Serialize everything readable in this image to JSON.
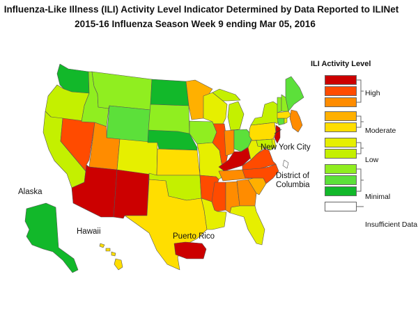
{
  "title": {
    "line1": "Influenza-Like Illness (ILI) Activity Level Indicator Determined by Data Reported to ILINet",
    "line2": "2015-16  Influenza Season Week  9 ending Mar 05, 2016"
  },
  "legend": {
    "title": "ILI Activity Level",
    "levels": [
      {
        "level": 10,
        "color": "#cc0000"
      },
      {
        "level": 9,
        "color": "#ff4b00"
      },
      {
        "level": 8,
        "color": "#ff8c00"
      },
      {
        "level": 7,
        "color": "#ffb000"
      },
      {
        "level": 6,
        "color": "#ffde00"
      },
      {
        "level": 5,
        "color": "#e6ef00"
      },
      {
        "level": 4,
        "color": "#c4f000"
      },
      {
        "level": 3,
        "color": "#90ee20"
      },
      {
        "level": 2,
        "color": "#5ce03a"
      },
      {
        "level": 1,
        "color": "#12b82a"
      },
      {
        "level": 0,
        "color": "#ffffff"
      }
    ],
    "groups": {
      "high": "High",
      "moderate": "Moderate",
      "low": "Low",
      "minimal": "Minimal",
      "insufficient": "Insufficient Data"
    }
  },
  "labels": {
    "alaska": "Alaska",
    "hawaii": "Hawaii",
    "puerto_rico": "Puerto Rico",
    "nyc": "New York City",
    "dc_line1": "District of",
    "dc_line2": "Columbia"
  },
  "states": {
    "WA": {
      "level": 1
    },
    "OR": {
      "level": 4
    },
    "CA": {
      "level": 4
    },
    "NV": {
      "level": 9
    },
    "ID": {
      "level": 3
    },
    "MT": {
      "level": 3
    },
    "WY": {
      "level": 2
    },
    "UT": {
      "level": 8
    },
    "AZ": {
      "level": 10
    },
    "NM": {
      "level": 10
    },
    "CO": {
      "level": 5
    },
    "ND": {
      "level": 1
    },
    "SD": {
      "level": 3
    },
    "NE": {
      "level": 1
    },
    "KS": {
      "level": 6
    },
    "OK": {
      "level": 4
    },
    "TX": {
      "level": 6
    },
    "MN": {
      "level": 7
    },
    "IA": {
      "level": 3
    },
    "MO": {
      "level": 5
    },
    "AR": {
      "level": 9
    },
    "LA": {
      "level": 5
    },
    "WI": {
      "level": 5
    },
    "IL": {
      "level": 9
    },
    "MI": {
      "level": 4
    },
    "IN": {
      "level": 8
    },
    "OH": {
      "level": 2
    },
    "KY": {
      "level": 10
    },
    "TN": {
      "level": 8
    },
    "MS": {
      "level": 9
    },
    "AL": {
      "level": 8
    },
    "GA": {
      "level": 8
    },
    "FL": {
      "level": 5
    },
    "SC": {
      "level": 7
    },
    "NC": {
      "level": 9
    },
    "VA": {
      "level": 9
    },
    "WV": {
      "level": 5
    },
    "PA": {
      "level": 6
    },
    "NY": {
      "level": 4
    },
    "MD": {
      "level": 4
    },
    "DE": {
      "level": 5
    },
    "NJ": {
      "level": 10
    },
    "CT": {
      "level": 2
    },
    "RI": {
      "level": 5
    },
    "MA": {
      "level": 6
    },
    "VT": {
      "level": 3
    },
    "NH": {
      "level": 3
    },
    "ME": {
      "level": 2
    },
    "NYC": {
      "level": 8
    },
    "DC": {
      "level": 0
    },
    "AK": {
      "level": 1
    },
    "HI": {
      "level": 6
    },
    "PR": {
      "level": 10
    }
  }
}
